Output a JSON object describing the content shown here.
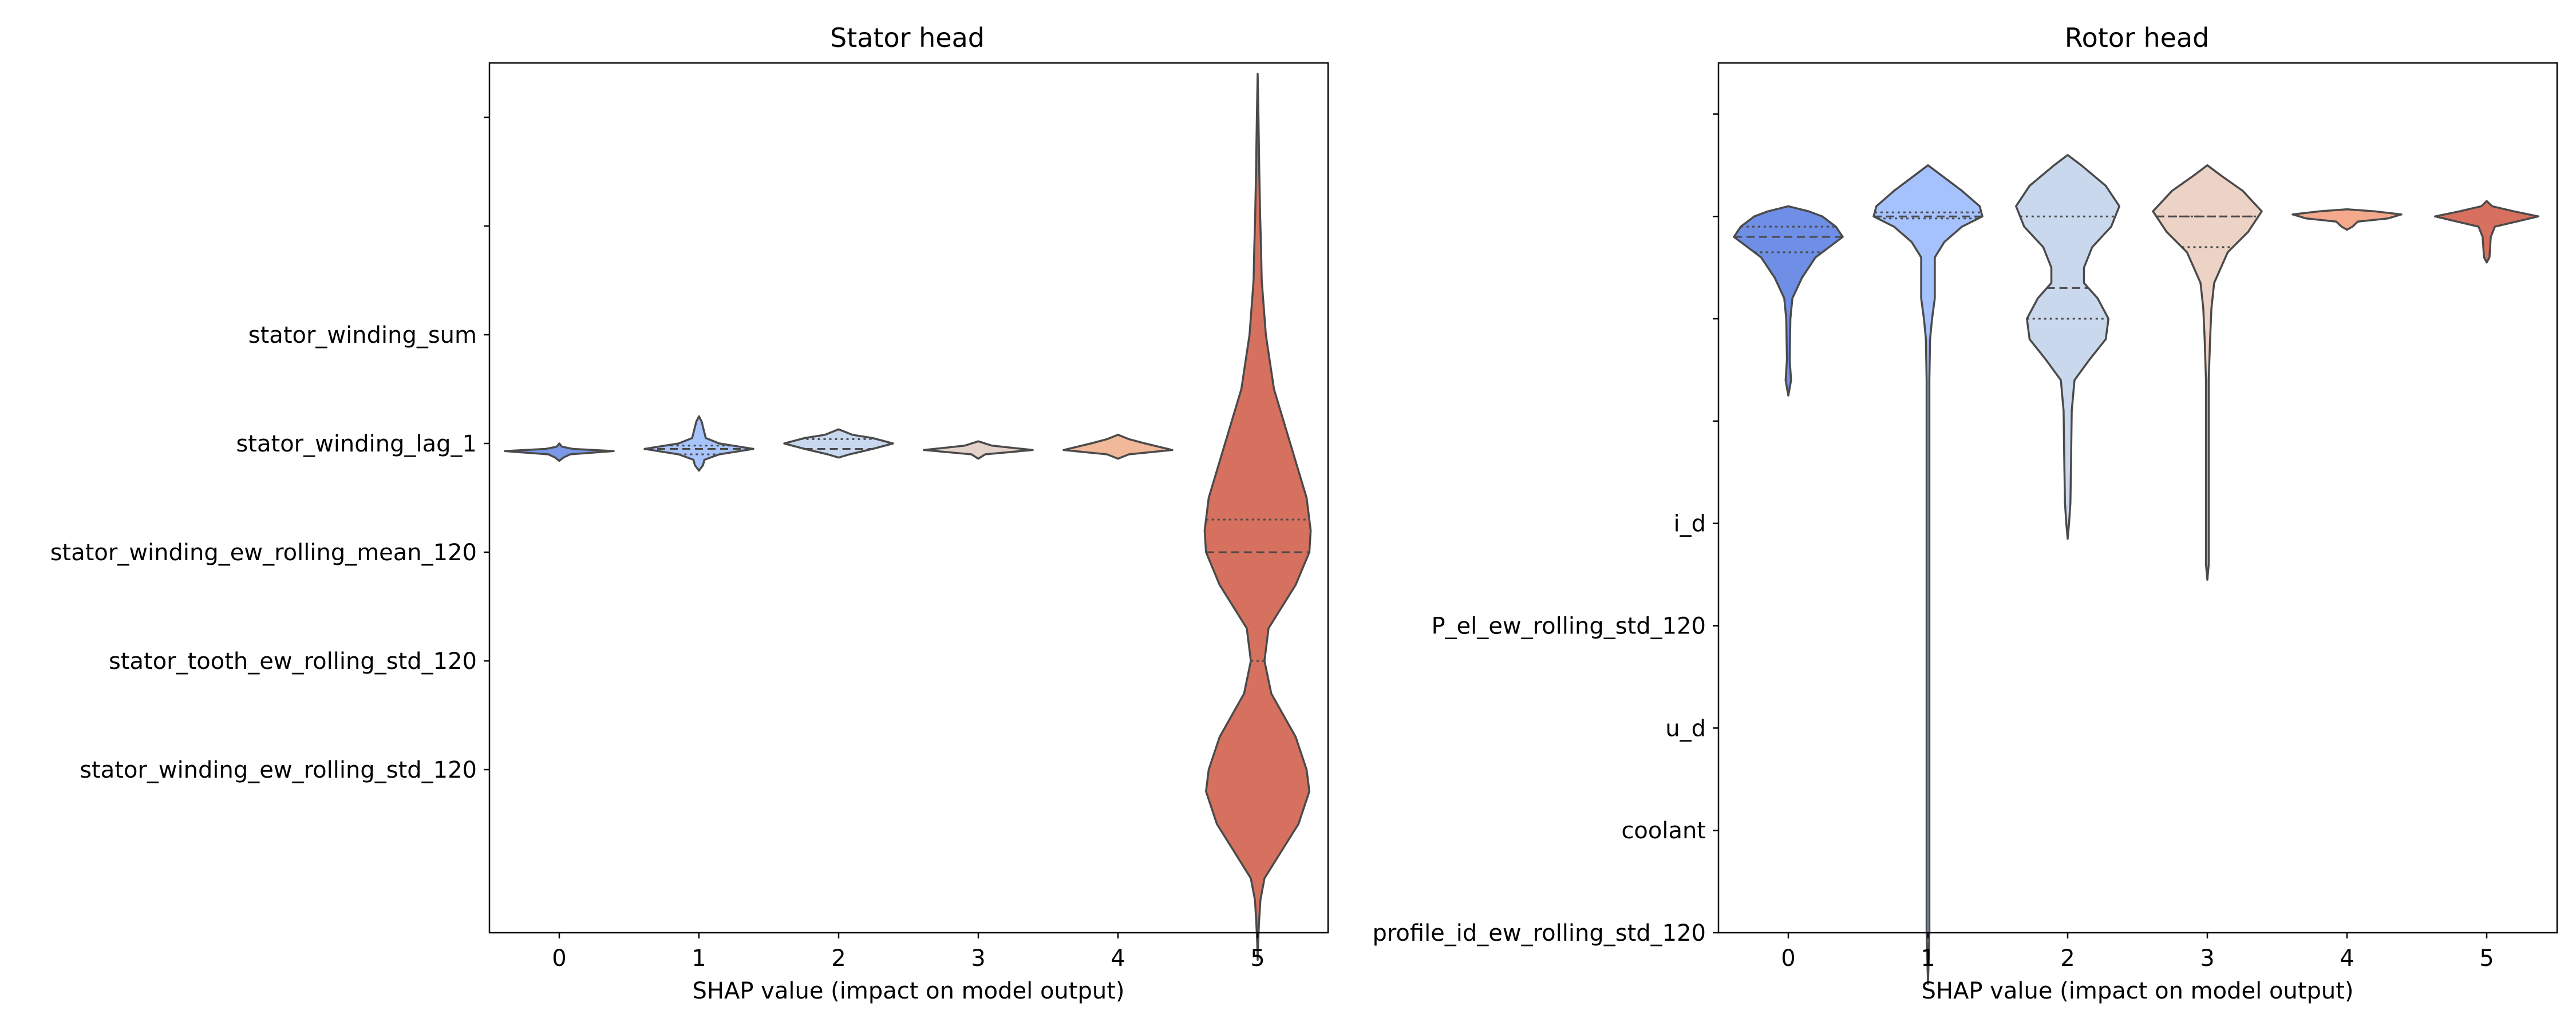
{
  "chart_data": [
    {
      "type": "violin",
      "title": "Stator head",
      "xlabel": "SHAP value (impact on model output)",
      "ylabel": "",
      "x_ticks": [
        "0",
        "1",
        "2",
        "3",
        "4",
        "5"
      ],
      "y_tick_labels": [
        "",
        "",
        "stator_winding_sum",
        "stator_winding_lag_1",
        "stator_winding_ew_rolling_mean_120",
        "stator_tooth_ew_rolling_std_120",
        "stator_winding_ew_rolling_std_120"
      ],
      "y_range": [
        -0.5,
        7.5
      ],
      "violins": [
        {
          "x": 0,
          "color": "#7b98e6",
          "quartiles": [],
          "profile": [
            [
              3.0,
              0.0
            ],
            [
              3.03,
              0.02
            ],
            [
              3.05,
              0.1
            ],
            [
              3.07,
              0.4
            ],
            [
              3.1,
              0.08
            ],
            [
              3.13,
              0.03
            ],
            [
              3.16,
              0.0
            ]
          ]
        },
        {
          "x": 1,
          "color": "#a8c4fd",
          "quartiles": [
            3.02,
            3.05,
            3.1
          ],
          "profile": [
            [
              2.75,
              0.0
            ],
            [
              2.8,
              0.02
            ],
            [
              2.85,
              0.03
            ],
            [
              2.9,
              0.04
            ],
            [
              2.95,
              0.05
            ],
            [
              3.0,
              0.15
            ],
            [
              3.05,
              0.4
            ],
            [
              3.1,
              0.15
            ],
            [
              3.15,
              0.04
            ],
            [
              3.2,
              0.03
            ],
            [
              3.25,
              0.0
            ]
          ]
        },
        {
          "x": 2,
          "color": "#c8d8ef",
          "quartiles": [
            2.96,
            3.05
          ],
          "profile": [
            [
              2.87,
              0.0
            ],
            [
              2.92,
              0.1
            ],
            [
              2.95,
              0.25
            ],
            [
              3.0,
              0.4
            ],
            [
              3.05,
              0.25
            ],
            [
              3.1,
              0.08
            ],
            [
              3.13,
              0.0
            ]
          ]
        },
        {
          "x": 3,
          "color": "#e5d3cb",
          "quartiles": [],
          "profile": [
            [
              2.98,
              0.0
            ],
            [
              3.02,
              0.1
            ],
            [
              3.06,
              0.4
            ],
            [
              3.1,
              0.05
            ],
            [
              3.14,
              0.0
            ]
          ]
        },
        {
          "x": 4,
          "color": "#f1b89a",
          "quartiles": [],
          "profile": [
            [
              2.92,
              0.0
            ],
            [
              2.96,
              0.08
            ],
            [
              3.0,
              0.2
            ],
            [
              3.06,
              0.4
            ],
            [
              3.1,
              0.08
            ],
            [
              3.14,
              0.0
            ]
          ]
        },
        {
          "x": 5,
          "color": "#d6715f",
          "quartiles": [
            3.7,
            4.0,
            5.0
          ],
          "profile": [
            [
              -0.4,
              0.0
            ],
            [
              -0.2,
              0.003
            ],
            [
              0.0,
              0.006
            ],
            [
              0.5,
              0.012
            ],
            [
              0.9,
              0.018
            ],
            [
              1.2,
              0.025
            ],
            [
              1.5,
              0.03
            ],
            [
              2.0,
              0.06
            ],
            [
              2.5,
              0.12
            ],
            [
              3.0,
              0.24
            ],
            [
              3.5,
              0.36
            ],
            [
              3.8,
              0.39
            ],
            [
              4.0,
              0.38
            ],
            [
              4.3,
              0.28
            ],
            [
              4.7,
              0.08
            ],
            [
              5.0,
              0.05
            ],
            [
              5.3,
              0.1
            ],
            [
              5.7,
              0.28
            ],
            [
              6.0,
              0.36
            ],
            [
              6.2,
              0.38
            ],
            [
              6.5,
              0.3
            ],
            [
              6.8,
              0.15
            ],
            [
              7.0,
              0.05
            ],
            [
              7.2,
              0.02
            ],
            [
              7.4,
              0.01
            ],
            [
              7.6,
              0.003
            ],
            [
              7.75,
              0.0
            ]
          ]
        }
      ]
    },
    {
      "type": "violin",
      "title": "Rotor head",
      "xlabel": "SHAP value (impact on model output)",
      "ylabel": "",
      "x_ticks": [
        "0",
        "1",
        "2",
        "3",
        "4",
        "5"
      ],
      "y_tick_labels": [
        "",
        "",
        "",
        "",
        "i_d",
        "P_el_ew_rolling_std_120",
        "u_d",
        "coolant",
        "profile_id_ew_rolling_std_120"
      ],
      "y_range": [
        -0.5,
        8.0
      ],
      "violins": [
        {
          "x": 0,
          "color": "#6f8ee6",
          "quartiles": [
            1.1,
            1.2,
            1.35
          ],
          "profile": [
            [
              0.9,
              0.0
            ],
            [
              0.95,
              0.15
            ],
            [
              1.0,
              0.25
            ],
            [
              1.1,
              0.35
            ],
            [
              1.2,
              0.4
            ],
            [
              1.3,
              0.3
            ],
            [
              1.4,
              0.2
            ],
            [
              1.5,
              0.15
            ],
            [
              1.6,
              0.1
            ],
            [
              1.8,
              0.03
            ],
            [
              2.0,
              0.015
            ],
            [
              2.4,
              0.01
            ],
            [
              2.6,
              0.02
            ],
            [
              2.75,
              0.0
            ]
          ]
        },
        {
          "x": 1,
          "color": "#a5c2fd",
          "quartiles": [
            0.96,
            1.0,
            1.02
          ],
          "profile": [
            [
              0.5,
              0.0
            ],
            [
              0.6,
              0.1
            ],
            [
              0.75,
              0.25
            ],
            [
              0.9,
              0.38
            ],
            [
              1.0,
              0.4
            ],
            [
              1.1,
              0.25
            ],
            [
              1.25,
              0.12
            ],
            [
              1.4,
              0.05
            ],
            [
              1.6,
              0.05
            ],
            [
              1.8,
              0.05
            ],
            [
              2.0,
              0.03
            ],
            [
              2.2,
              0.015
            ],
            [
              2.6,
              0.01
            ],
            [
              4.0,
              0.01
            ],
            [
              6.0,
              0.01
            ],
            [
              8.0,
              0.01
            ],
            [
              8.5,
              0.0
            ]
          ]
        },
        {
          "x": 2,
          "color": "#cad8ee",
          "quartiles": [
            1.0,
            1.7,
            2.0
          ],
          "profile": [
            [
              0.4,
              0.0
            ],
            [
              0.5,
              0.1
            ],
            [
              0.7,
              0.28
            ],
            [
              0.9,
              0.38
            ],
            [
              1.1,
              0.32
            ],
            [
              1.3,
              0.18
            ],
            [
              1.5,
              0.12
            ],
            [
              1.65,
              0.12
            ],
            [
              1.8,
              0.22
            ],
            [
              2.0,
              0.3
            ],
            [
              2.2,
              0.28
            ],
            [
              2.4,
              0.16
            ],
            [
              2.6,
              0.05
            ],
            [
              2.9,
              0.03
            ],
            [
              3.4,
              0.025
            ],
            [
              3.8,
              0.02
            ],
            [
              4.0,
              0.01
            ],
            [
              4.15,
              0.0
            ]
          ]
        },
        {
          "x": 3,
          "color": "#ecd3c5",
          "quartiles": [
            1.0,
            1.0,
            1.3
          ],
          "profile": [
            [
              0.5,
              0.0
            ],
            [
              0.6,
              0.1
            ],
            [
              0.75,
              0.26
            ],
            [
              0.95,
              0.4
            ],
            [
              1.15,
              0.3
            ],
            [
              1.35,
              0.15
            ],
            [
              1.5,
              0.1
            ],
            [
              1.65,
              0.05
            ],
            [
              1.9,
              0.03
            ],
            [
              2.2,
              0.02
            ],
            [
              2.6,
              0.01
            ],
            [
              3.5,
              0.01
            ],
            [
              4.4,
              0.01
            ],
            [
              4.55,
              0.0
            ]
          ]
        },
        {
          "x": 4,
          "color": "#f4a98c",
          "quartiles": [],
          "profile": [
            [
              0.93,
              0.0
            ],
            [
              0.95,
              0.2
            ],
            [
              0.98,
              0.4
            ],
            [
              1.02,
              0.3
            ],
            [
              1.05,
              0.08
            ],
            [
              1.1,
              0.04
            ],
            [
              1.13,
              0.0
            ]
          ]
        },
        {
          "x": 5,
          "color": "#d8705f",
          "quartiles": [],
          "profile": [
            [
              0.85,
              0.0
            ],
            [
              0.9,
              0.04
            ],
            [
              0.95,
              0.2
            ],
            [
              1.0,
              0.38
            ],
            [
              1.05,
              0.22
            ],
            [
              1.1,
              0.06
            ],
            [
              1.2,
              0.03
            ],
            [
              1.4,
              0.02
            ],
            [
              1.45,
              0.0
            ]
          ]
        }
      ]
    }
  ]
}
